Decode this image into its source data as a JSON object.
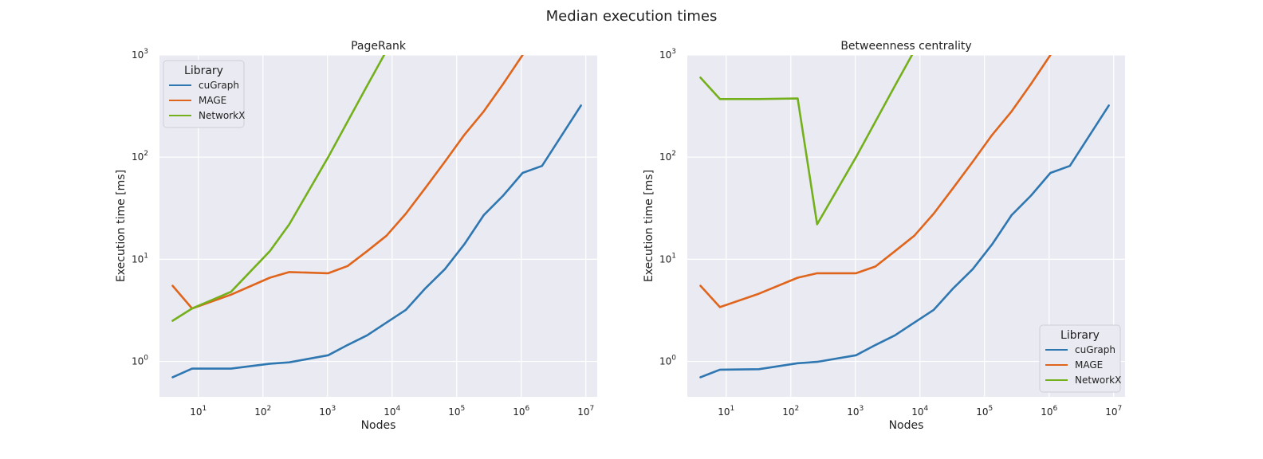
{
  "figure": {
    "title": "Median execution times"
  },
  "chart_data": [
    {
      "type": "line",
      "title": "PageRank",
      "xlabel": "Nodes",
      "ylabel": "Execution time [ms]",
      "xscale": "log",
      "yscale": "log",
      "xlim": [
        2.5,
        15000000
      ],
      "ylim": [
        0.45,
        1000
      ],
      "grid": true,
      "legend": {
        "title": "Library",
        "placement": "top-left"
      },
      "x_ticks": [
        {
          "value": 10,
          "exp": "1"
        },
        {
          "value": 100,
          "exp": "2"
        },
        {
          "value": 1000,
          "exp": "3"
        },
        {
          "value": 10000,
          "exp": "4"
        },
        {
          "value": 100000,
          "exp": "5"
        },
        {
          "value": 1000000,
          "exp": "6"
        },
        {
          "value": 10000000,
          "exp": "7"
        }
      ],
      "y_ticks": [
        {
          "value": 1,
          "exp": "0"
        },
        {
          "value": 10,
          "exp": "1"
        },
        {
          "value": 100,
          "exp": "2"
        },
        {
          "value": 1000,
          "exp": "3"
        }
      ],
      "series": [
        {
          "name": "cuGraph",
          "color": "#2f77b1",
          "x": [
            4,
            8,
            32,
            128,
            256,
            1024,
            2048,
            4096,
            8192,
            16384,
            32768,
            65536,
            131072,
            262144,
            524288,
            1048576,
            2097152,
            8388608
          ],
          "y": [
            0.7,
            0.85,
            0.85,
            0.95,
            0.98,
            1.15,
            1.45,
            1.8,
            2.4,
            3.2,
            5.2,
            8.0,
            14,
            27,
            42,
            70,
            82,
            320
          ]
        },
        {
          "name": "MAGE",
          "color": "#e0651c",
          "x": [
            4,
            8,
            32,
            128,
            256,
            1024,
            2048,
            4096,
            8192,
            16384,
            32768,
            65536,
            131072,
            262144,
            524288,
            1048576,
            2097152
          ],
          "y": [
            5.5,
            3.3,
            4.5,
            6.6,
            7.5,
            7.3,
            8.6,
            12,
            17,
            28,
            50,
            90,
            165,
            280,
            520,
            1000,
            2000
          ]
        },
        {
          "name": "NetworkX",
          "color": "#74b01b",
          "x": [
            4,
            8,
            32,
            128,
            256,
            1024,
            4096,
            8192
          ],
          "y": [
            2.5,
            3.3,
            4.8,
            12,
            22,
            100,
            500,
            1100
          ]
        }
      ]
    },
    {
      "type": "line",
      "title": "Betweenness centrality",
      "xlabel": "Nodes",
      "ylabel": "Execution time [ms]",
      "xscale": "log",
      "yscale": "log",
      "xlim": [
        2.5,
        15000000
      ],
      "ylim": [
        0.45,
        1000
      ],
      "grid": true,
      "legend": {
        "title": "Library",
        "placement": "bottom-right"
      },
      "x_ticks": [
        {
          "value": 10,
          "exp": "1"
        },
        {
          "value": 100,
          "exp": "2"
        },
        {
          "value": 1000,
          "exp": "3"
        },
        {
          "value": 10000,
          "exp": "4"
        },
        {
          "value": 100000,
          "exp": "5"
        },
        {
          "value": 1000000,
          "exp": "6"
        },
        {
          "value": 10000000,
          "exp": "7"
        }
      ],
      "y_ticks": [
        {
          "value": 1,
          "exp": "0"
        },
        {
          "value": 10,
          "exp": "1"
        },
        {
          "value": 100,
          "exp": "2"
        },
        {
          "value": 1000,
          "exp": "3"
        }
      ],
      "series": [
        {
          "name": "cuGraph",
          "color": "#2f77b1",
          "x": [
            4,
            8,
            32,
            128,
            256,
            1024,
            2048,
            4096,
            8192,
            16384,
            32768,
            65536,
            131072,
            262144,
            524288,
            1048576,
            2097152,
            8388608
          ],
          "y": [
            0.7,
            0.83,
            0.84,
            0.96,
            0.99,
            1.15,
            1.45,
            1.8,
            2.4,
            3.2,
            5.2,
            8.0,
            14,
            27,
            42,
            70,
            82,
            320
          ]
        },
        {
          "name": "MAGE",
          "color": "#e0651c",
          "x": [
            4,
            8,
            32,
            128,
            256,
            1024,
            2048,
            4096,
            8192,
            16384,
            32768,
            65536,
            131072,
            262144,
            524288,
            1048576,
            2097152
          ],
          "y": [
            5.5,
            3.4,
            4.6,
            6.6,
            7.3,
            7.3,
            8.5,
            12,
            17,
            28,
            50,
            90,
            165,
            280,
            520,
            1000,
            2000
          ]
        },
        {
          "name": "NetworkX",
          "color": "#74b01b",
          "x": [
            4,
            8,
            32,
            128,
            256,
            1024,
            4096,
            8192
          ],
          "y": [
            600,
            370,
            370,
            375,
            22,
            100,
            500,
            1100
          ]
        }
      ]
    }
  ]
}
